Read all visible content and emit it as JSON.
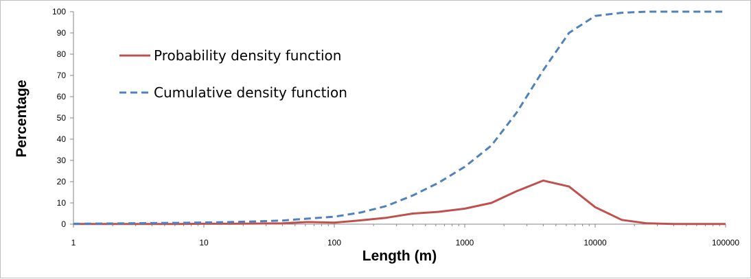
{
  "chart_data": {
    "type": "line",
    "xlabel": "Length (m)",
    "ylabel": "Percentage",
    "xscale": "log",
    "xlim": [
      1,
      100000
    ],
    "ylim": [
      0,
      100
    ],
    "x_ticks": [
      "1",
      "10",
      "100",
      "1000",
      "10000",
      "100000"
    ],
    "y_ticks": [
      "0",
      "10",
      "20",
      "30",
      "40",
      "50",
      "60",
      "70",
      "80",
      "90",
      "100"
    ],
    "grid": false,
    "legend_position": "upper-left",
    "series": [
      {
        "name": "Probability density function",
        "color": "#c0504d",
        "style": "solid",
        "x": [
          1,
          1.6,
          2.5,
          4,
          6.3,
          10,
          16,
          25,
          40,
          63,
          100,
          160,
          250,
          400,
          630,
          1000,
          1600,
          2500,
          4000,
          6300,
          10000,
          16000,
          25000,
          40000,
          63000,
          100000
        ],
        "values": [
          0.1,
          0.1,
          0.1,
          0.1,
          0.1,
          0.2,
          0.2,
          0.3,
          0.4,
          1.0,
          0.7,
          1.8,
          3.0,
          5.0,
          5.8,
          7.3,
          10.0,
          15.5,
          20.5,
          17.7,
          8.0,
          2.0,
          0.4,
          0.1,
          0.1,
          0.1
        ]
      },
      {
        "name": "Cumulative density function",
        "color": "#4f81bd",
        "style": "dashed",
        "x": [
          1,
          1.6,
          2.5,
          4,
          6.3,
          10,
          16,
          25,
          40,
          63,
          100,
          160,
          250,
          400,
          630,
          1000,
          1600,
          2500,
          4000,
          6300,
          10000,
          16000,
          25000,
          40000,
          63000,
          100000
        ],
        "values": [
          0.2,
          0.3,
          0.4,
          0.5,
          0.6,
          0.8,
          1.0,
          1.3,
          1.7,
          2.6,
          3.5,
          5.5,
          8.5,
          13.5,
          19.5,
          27.0,
          37.0,
          52.5,
          72.5,
          90.0,
          98.0,
          99.5,
          100,
          100,
          100,
          100
        ]
      }
    ]
  }
}
